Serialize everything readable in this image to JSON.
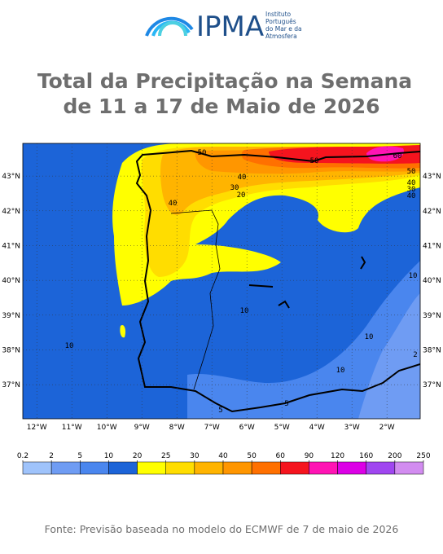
{
  "header": {
    "logo_text": "IPMA",
    "logo_subtitle": [
      "Instituto",
      "Português",
      "do Mar e da",
      "Atmosfera"
    ]
  },
  "title": [
    "Total da Precipitação na Semana",
    "de 11 a 17 de Maio de 2026"
  ],
  "map": {
    "xlim": [
      -12.4,
      -1.05
    ],
    "ylim": [
      36.02,
      43.94
    ],
    "xticks": [
      {
        "value": -12,
        "label": "12°W"
      },
      {
        "value": -11,
        "label": "11°W"
      },
      {
        "value": -10,
        "label": "10°W"
      },
      {
        "value": -9,
        "label": "9°W"
      },
      {
        "value": -8,
        "label": "8°W"
      },
      {
        "value": -7,
        "label": "7°W"
      },
      {
        "value": -6,
        "label": "6°W"
      },
      {
        "value": -5,
        "label": "5°W"
      },
      {
        "value": -4,
        "label": "4°W"
      },
      {
        "value": -3,
        "label": "3°W"
      },
      {
        "value": -2,
        "label": "2°W"
      }
    ],
    "yticks": [
      {
        "value": 37,
        "label": "37°N"
      },
      {
        "value": 38,
        "label": "38°N"
      },
      {
        "value": 39,
        "label": "39°N"
      },
      {
        "value": 40,
        "label": "40°N"
      },
      {
        "value": 41,
        "label": "41°N"
      },
      {
        "value": 42,
        "label": "42°N"
      },
      {
        "value": 43,
        "label": "43°N"
      }
    ],
    "contour_labels": [
      "10",
      "10",
      "10",
      "10",
      "10",
      "5",
      "5",
      "2",
      "40",
      "30",
      "20",
      "40",
      "40",
      "30",
      "40",
      "50",
      "50",
      "50",
      "60"
    ]
  },
  "colorbar": {
    "levels": [
      0.2,
      2,
      5,
      10,
      20,
      25,
      30,
      40,
      50,
      60,
      90,
      120,
      160,
      200,
      250
    ],
    "colors": [
      "#9fc3fb",
      "#6f9cf3",
      "#4a86ee",
      "#1c64d8",
      "#ffff00",
      "#ffdd00",
      "#ffb400",
      "#ff9600",
      "#ff7000",
      "#f5141e",
      "#ff14b4",
      "#dc00e6",
      "#a046f0",
      "#d28cf0"
    ]
  },
  "footer": "Fonte: Previsão baseada no modelo do ECMWF de 7 de maio de 2026"
}
